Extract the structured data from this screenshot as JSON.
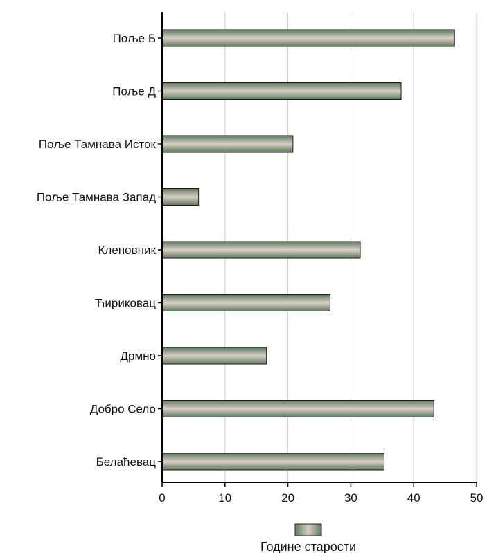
{
  "chart_data": {
    "type": "bar",
    "orientation": "horizontal",
    "categories": [
      "Поље Б",
      "Поље Д",
      "Поље Тамнава Исток",
      "Поље Тамнава Запад",
      "Кленовник",
      "Ћириковац",
      "Дрмно",
      "Добро Село",
      "Белаћевац"
    ],
    "series": [
      {
        "name": "Године старости",
        "values": [
          46.5,
          38,
          20.8,
          5.8,
          31.5,
          26.7,
          16.6,
          43.2,
          35.3
        ]
      }
    ],
    "xlim": [
      0,
      50
    ],
    "xticks": [
      "0",
      "10",
      "20",
      "30",
      "40",
      "50"
    ],
    "grid": "vertical",
    "legend": "bottom-center",
    "title": "",
    "xlabel": "",
    "ylabel": "",
    "colors": {
      "bar_dark": "#5f7a5d",
      "bar_light": "#d8cfc4",
      "grid": "#c8c8c8",
      "axis": "#000000"
    }
  }
}
